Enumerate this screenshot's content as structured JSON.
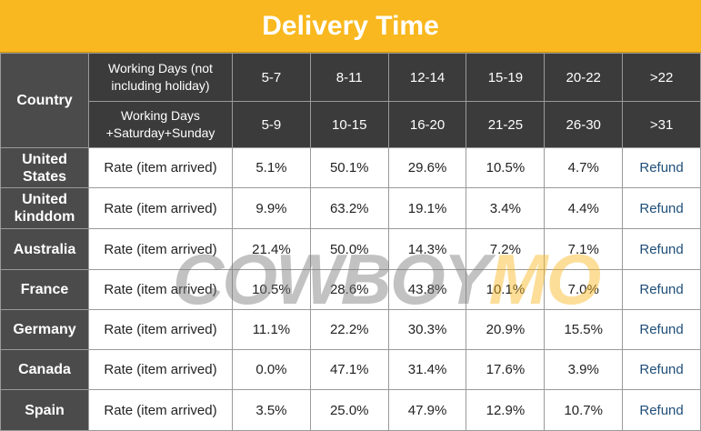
{
  "header": {
    "title": "Delivery Time"
  },
  "table": {
    "country_header": "Country",
    "tiers": [
      {
        "label": "Working Days (not including holiday)",
        "ranges": [
          "5-7",
          "8-11",
          "12-14",
          "15-19",
          "20-22",
          ">22"
        ]
      },
      {
        "label": "Working Days +Saturday+Sunday",
        "ranges": [
          "5-9",
          "10-15",
          "16-20",
          "21-25",
          "26-30",
          ">31"
        ]
      }
    ],
    "rows": [
      {
        "country": "United States",
        "metric": "Rate (item arrived)",
        "rates": [
          "5.1%",
          "50.1%",
          "29.6%",
          "10.5%",
          "4.7%"
        ],
        "last": "Refund"
      },
      {
        "country": "United kinddom",
        "metric": "Rate (item arrived)",
        "rates": [
          "9.9%",
          "63.2%",
          "19.1%",
          "3.4%",
          "4.4%"
        ],
        "last": "Refund"
      },
      {
        "country": "Australia",
        "metric": "Rate (item arrived)",
        "rates": [
          "21.4%",
          "50.0%",
          "14.3%",
          "7.2%",
          "7.1%"
        ],
        "last": "Refund"
      },
      {
        "country": "France",
        "metric": "Rate (item arrived)",
        "rates": [
          "10.5%",
          "28.6%",
          "43.8%",
          "10.1%",
          "7.0%"
        ],
        "last": "Refund"
      },
      {
        "country": "Germany",
        "metric": "Rate (item arrived)",
        "rates": [
          "11.1%",
          "22.2%",
          "30.3%",
          "20.9%",
          "15.5%"
        ],
        "last": "Refund"
      },
      {
        "country": "Canada",
        "metric": "Rate (item arrived)",
        "rates": [
          "0.0%",
          "47.1%",
          "31.4%",
          "17.6%",
          "3.9%"
        ],
        "last": "Refund"
      },
      {
        "country": "Spain",
        "metric": "Rate (item arrived)",
        "rates": [
          "3.5%",
          "25.0%",
          "47.9%",
          "12.9%",
          "10.7%"
        ],
        "last": "Refund"
      }
    ]
  },
  "watermark": {
    "brand": "COWBOY",
    "suffix": "MO"
  }
}
